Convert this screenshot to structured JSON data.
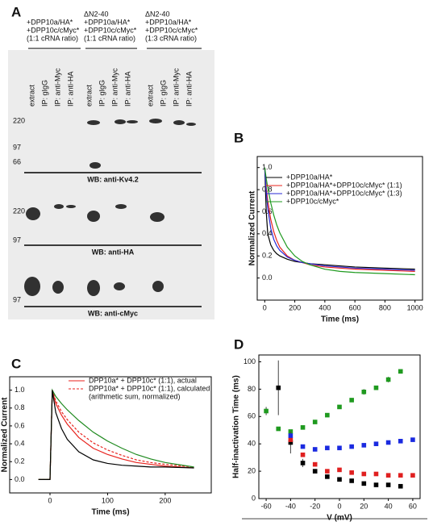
{
  "blot": {
    "panel": "A",
    "groups": [
      [
        "+DPP10a/HA*",
        "+DPP10c/cMyc*",
        "(1:1 cRNA ratio)"
      ],
      [
        "ΔN2-40",
        "+DPP10a/HA*",
        "+DPP10c/cMyc*",
        "(1:1 cRNA ratio)"
      ],
      [
        "ΔN2-40",
        "+DPP10a/HA*",
        "+DPP10c/cMyc*",
        "(1:3 cRNA ratio)"
      ]
    ],
    "lanes": [
      "extract",
      "IP: gIgG",
      "IP: anti-Myc",
      "IP: anti-HA"
    ],
    "blots": [
      {
        "title": "WB: anti-Kv4.2",
        "markers": [
          "220",
          "97",
          "66"
        ]
      },
      {
        "title": "WB: anti-HA",
        "markers": [
          "220",
          "97"
        ]
      },
      {
        "title": "WB: anti-cMyc",
        "markers": [
          "97"
        ]
      }
    ]
  },
  "chart_data": [
    {
      "type": "line",
      "panel": "B",
      "xlabel": "Time (ms)",
      "ylabel": "Normalized Current",
      "x": [
        0,
        10,
        20,
        40,
        60,
        80,
        100,
        150,
        200,
        250,
        300,
        400,
        500,
        600,
        800,
        1000
      ],
      "series": [
        {
          "name": "+DPP10a/HA*",
          "color": "#000000",
          "values": [
            1.0,
            0.6,
            0.4,
            0.3,
            0.25,
            0.22,
            0.2,
            0.17,
            0.15,
            0.14,
            0.13,
            0.12,
            0.11,
            0.1,
            0.09,
            0.08
          ]
        },
        {
          "name": "+DPP10a/HA*+DPP10c/cMyc* (1:1)",
          "color": "#e8231e",
          "values": [
            1.0,
            0.82,
            0.7,
            0.53,
            0.42,
            0.34,
            0.28,
            0.2,
            0.16,
            0.14,
            0.12,
            0.1,
            0.09,
            0.08,
            0.07,
            0.06
          ]
        },
        {
          "name": "+DPP10a/HA*+DPP10c/cMyc* (1:3)",
          "color": "#2a2ad6",
          "values": [
            1.0,
            0.78,
            0.63,
            0.45,
            0.35,
            0.29,
            0.25,
            0.19,
            0.16,
            0.14,
            0.13,
            0.11,
            0.1,
            0.09,
            0.08,
            0.07
          ]
        },
        {
          "name": "+DPP10c/cMyc*",
          "color": "#1f9a1f",
          "values": [
            1.0,
            0.9,
            0.82,
            0.68,
            0.57,
            0.48,
            0.41,
            0.28,
            0.2,
            0.15,
            0.12,
            0.08,
            0.06,
            0.05,
            0.04,
            0.03
          ]
        }
      ],
      "xlim": [
        -50,
        1050
      ],
      "ylim": [
        -0.2,
        1.1
      ],
      "xticks": [
        0,
        200,
        400,
        600,
        800,
        1000
      ],
      "yticks": [
        {
          "value": 0,
          "label": "0.0"
        },
        {
          "value": 0.2,
          "label": "0.2"
        },
        {
          "value": 0.4,
          "label": "0.4"
        },
        {
          "value": 0.6,
          "label": "0.6"
        },
        {
          "value": 0.8,
          "label": "0.8"
        },
        {
          "value": 1,
          "label": "1.0"
        }
      ]
    },
    {
      "type": "line",
      "panel": "C",
      "xlabel": "Time (ms)",
      "ylabel": "Normalized Current",
      "legend_note": "(arithmetic sum, normalized)",
      "x": [
        -20,
        -1,
        0,
        2,
        4,
        10,
        20,
        30,
        50,
        75,
        100,
        125,
        150,
        175,
        200,
        250
      ],
      "series": [
        {
          "name": "DPP10a* + DPP10c* (1:1), actual",
          "color": "#e8231e",
          "values": [
            0,
            0,
            0,
            0.5,
            1.0,
            0.85,
            0.72,
            0.62,
            0.47,
            0.35,
            0.28,
            0.23,
            0.19,
            0.17,
            0.15,
            0.13
          ]
        },
        {
          "name": "DPP10a* + DPP10c* (1:1), calculated",
          "color": "#e8231e",
          "dashed": true,
          "values": [
            0,
            0,
            0,
            0.5,
            1.0,
            0.88,
            0.76,
            0.67,
            0.53,
            0.41,
            0.33,
            0.27,
            0.22,
            0.19,
            0.17,
            0.14
          ]
        },
        {
          "color": "#1f8a1f",
          "values": [
            0,
            0,
            0,
            0.5,
            1.0,
            0.93,
            0.85,
            0.78,
            0.66,
            0.53,
            0.43,
            0.35,
            0.28,
            0.23,
            0.19,
            0.14
          ]
        },
        {
          "color": "#000000",
          "values": [
            0,
            0,
            0,
            0.5,
            1.0,
            0.75,
            0.57,
            0.45,
            0.31,
            0.22,
            0.18,
            0.16,
            0.15,
            0.14,
            0.14,
            0.13
          ]
        }
      ],
      "xlim": [
        -70,
        280
      ],
      "ylim": [
        -0.15,
        1.15
      ],
      "xticks": [
        0,
        100,
        200
      ],
      "yticks": [
        {
          "value": 0,
          "label": "0.0"
        },
        {
          "value": 0.2,
          "label": "0.2"
        },
        {
          "value": 0.4,
          "label": "0.4"
        },
        {
          "value": 0.6,
          "label": "0.6"
        },
        {
          "value": 0.8,
          "label": "0.8"
        },
        {
          "value": 1,
          "label": "1.0"
        }
      ]
    },
    {
      "type": "scatter",
      "panel": "D",
      "xlabel": "V (mV)",
      "ylabel": "Half-inactivation Time (ms)",
      "series": [
        {
          "color": "#1f9a1f",
          "x": [
            -60,
            -50,
            -40,
            -30,
            -20,
            -10,
            0,
            10,
            20,
            30,
            40,
            50
          ],
          "values": [
            64,
            51,
            49,
            52,
            56,
            61,
            67,
            72,
            78,
            81,
            87,
            93
          ],
          "errors": [
            3,
            null,
            null,
            null,
            null,
            null,
            null,
            null,
            2,
            null,
            2,
            null
          ]
        },
        {
          "color": "#000000",
          "x": [
            -50,
            -40,
            -30,
            -20,
            -10,
            0,
            10,
            20,
            30,
            40,
            50
          ],
          "values": [
            81,
            41,
            26,
            20,
            16,
            14,
            13,
            11,
            10,
            10,
            9
          ],
          "errors": [
            20,
            8,
            3,
            null,
            null,
            null,
            null,
            null,
            null,
            null,
            null
          ]
        },
        {
          "color": "#e02020",
          "x": [
            -40,
            -30,
            -20,
            -10,
            0,
            10,
            20,
            30,
            40,
            50,
            60
          ],
          "values": [
            43,
            32,
            25,
            20,
            21,
            19,
            18,
            18,
            17,
            17,
            17
          ]
        },
        {
          "color": "#1a2ae0",
          "x": [
            -40,
            -30,
            -20,
            -10,
            0,
            10,
            20,
            30,
            40,
            50,
            60
          ],
          "values": [
            46,
            38,
            36,
            37,
            37,
            38,
            39,
            40,
            41,
            42,
            43
          ]
        }
      ],
      "xlim": [
        -66,
        66
      ],
      "ylim": [
        0,
        105
      ],
      "xticks": [
        -60,
        -40,
        -20,
        0,
        20,
        40,
        60
      ],
      "yticks": [
        0,
        20,
        40,
        60,
        80,
        100
      ]
    }
  ]
}
